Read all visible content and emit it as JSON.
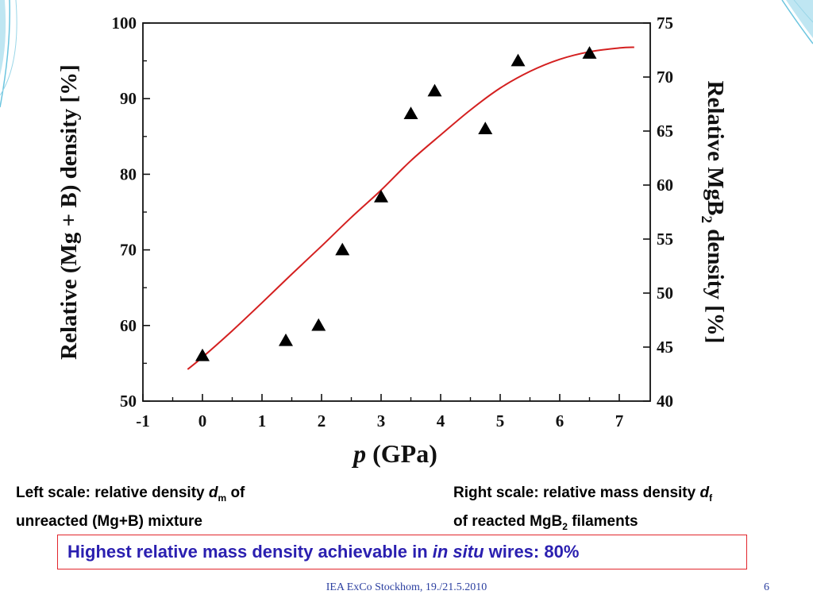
{
  "slide": {
    "caption_left": {
      "text1": "Left scale: relative density ",
      "var": "d",
      "sub": "m",
      "text2": " of",
      "line2": "unreacted (Mg+B) mixture"
    },
    "caption_right": {
      "text1": "Right scale: relative mass density ",
      "var": "d",
      "sub": "f",
      "line2a": "of reacted MgB",
      "line2sub": "2",
      "line2b": " filaments"
    },
    "highlight": {
      "text1": "Highest relative mass density achievable in ",
      "italic": "in situ",
      "text2": " wires: 80%",
      "border_color": "#e2262c",
      "text_color": "#2a1fb0"
    },
    "footer": "IEA ExCo Stockhom, 19./21.5.2010",
    "page_number": "6",
    "accent_color": "#2b3fa0"
  },
  "chart_data": {
    "type": "scatter",
    "xlabel_var": "p",
    "xlabel_unit": " (GPa)",
    "ylabel_left": "Relative (Mg + B) density [%]",
    "ylabel_right_a": "Relative MgB",
    "ylabel_right_sub": "2",
    "ylabel_right_b": " density [%]",
    "xlim": [
      -1,
      7.5
    ],
    "ylim_left": [
      50,
      100
    ],
    "ylim_right": [
      40,
      75
    ],
    "x_ticks": [
      -1,
      0,
      1,
      2,
      3,
      4,
      5,
      6,
      7
    ],
    "y_ticks_left": [
      50,
      60,
      70,
      80,
      90,
      100
    ],
    "y_ticks_right": [
      40,
      45,
      50,
      55,
      60,
      65,
      70,
      75
    ],
    "grid": false,
    "series": [
      {
        "marker": "triangle",
        "color": "#000000",
        "x": [
          0,
          1.4,
          1.95,
          2.35,
          3.0,
          3.5,
          3.9,
          4.75,
          5.3,
          6.5
        ],
        "y": [
          56,
          58,
          60,
          70,
          77,
          88,
          91,
          86,
          95,
          96
        ]
      },
      {
        "marker": "line",
        "color": "#d42020",
        "x": [
          -0.25,
          0,
          0.5,
          1,
          1.5,
          2,
          2.5,
          3,
          3.5,
          4,
          4.5,
          5,
          5.5,
          6,
          6.5,
          7,
          7.25
        ],
        "y": [
          54.2,
          55.8,
          59.3,
          63.0,
          66.8,
          70.5,
          74.3,
          77.9,
          81.8,
          85.2,
          88.5,
          91.4,
          93.6,
          95.2,
          96.2,
          96.7,
          96.8
        ]
      }
    ]
  }
}
